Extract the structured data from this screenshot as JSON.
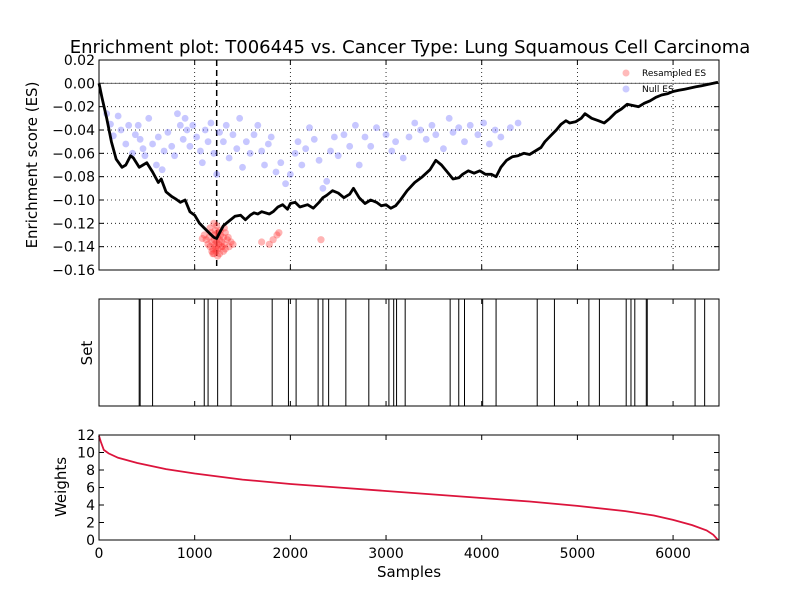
{
  "chart_data": [
    {
      "panel": "enrichment",
      "type": "line",
      "title": "Enrichment plot: T006445 vs. Cancer Type: Lung Squamous Cell Carcinoma",
      "ylabel": "Enrichment score (ES)",
      "xlabel": "",
      "xlim": [
        0,
        6480
      ],
      "ylim": [
        -0.16,
        0.02
      ],
      "yticks": [
        0.02,
        0.0,
        -0.02,
        -0.04,
        -0.06,
        -0.08,
        -0.1,
        -0.12,
        -0.14,
        -0.16
      ],
      "ytick_labels": [
        "0.02",
        "0.00",
        "−0.02",
        "−0.04",
        "−0.06",
        "−0.08",
        "−0.10",
        "−0.12",
        "−0.14",
        "−0.16"
      ],
      "grid": true,
      "legend_position": "top-right",
      "zero_line": 0.0,
      "min_es_position": 1230,
      "series": [
        {
          "name": "ES",
          "color": "#000000",
          "x": [
            0,
            30,
            80,
            130,
            180,
            240,
            280,
            330,
            360,
            420,
            460,
            500,
            560,
            620,
            650,
            700,
            760,
            800,
            850,
            900,
            950,
            1000,
            1050,
            1100,
            1150,
            1200,
            1230,
            1260,
            1300,
            1360,
            1420,
            1480,
            1530,
            1580,
            1620,
            1660,
            1700,
            1780,
            1820,
            1870,
            1920,
            1970,
            2000,
            2050,
            2100,
            2180,
            2240,
            2300,
            2340,
            2380,
            2440,
            2500,
            2560,
            2620,
            2660,
            2720,
            2780,
            2840,
            2900,
            2950,
            3000,
            3050,
            3100,
            3150,
            3220,
            3300,
            3380,
            3460,
            3520,
            3580,
            3640,
            3700,
            3760,
            3800,
            3860,
            3920,
            3980,
            4040,
            4100,
            4150,
            4200,
            4260,
            4320,
            4380,
            4440,
            4500,
            4560,
            4620,
            4660,
            4720,
            4780,
            4830,
            4880,
            4920,
            4980,
            5040,
            5080,
            5150,
            5220,
            5280,
            5340,
            5400,
            5460,
            5520,
            5580,
            5640,
            5700,
            5760,
            5820,
            5880,
            5940,
            6000,
            6060,
            6120,
            6180,
            6240,
            6300,
            6360,
            6420,
            6470
          ],
          "y": [
            0.0,
            -0.012,
            -0.03,
            -0.05,
            -0.065,
            -0.072,
            -0.07,
            -0.062,
            -0.064,
            -0.072,
            -0.07,
            -0.068,
            -0.076,
            -0.085,
            -0.082,
            -0.093,
            -0.097,
            -0.099,
            -0.102,
            -0.1,
            -0.11,
            -0.113,
            -0.12,
            -0.124,
            -0.128,
            -0.132,
            -0.133,
            -0.128,
            -0.122,
            -0.118,
            -0.114,
            -0.113,
            -0.117,
            -0.113,
            -0.111,
            -0.112,
            -0.11,
            -0.112,
            -0.11,
            -0.106,
            -0.104,
            -0.108,
            -0.103,
            -0.102,
            -0.106,
            -0.104,
            -0.107,
            -0.102,
            -0.098,
            -0.096,
            -0.092,
            -0.094,
            -0.098,
            -0.095,
            -0.09,
            -0.098,
            -0.103,
            -0.1,
            -0.102,
            -0.105,
            -0.104,
            -0.107,
            -0.105,
            -0.1,
            -0.092,
            -0.085,
            -0.08,
            -0.074,
            -0.066,
            -0.07,
            -0.076,
            -0.082,
            -0.081,
            -0.078,
            -0.075,
            -0.077,
            -0.075,
            -0.078,
            -0.078,
            -0.08,
            -0.072,
            -0.066,
            -0.063,
            -0.062,
            -0.06,
            -0.061,
            -0.058,
            -0.055,
            -0.05,
            -0.045,
            -0.04,
            -0.035,
            -0.032,
            -0.034,
            -0.033,
            -0.03,
            -0.026,
            -0.03,
            -0.032,
            -0.034,
            -0.03,
            -0.025,
            -0.022,
            -0.018,
            -0.019,
            -0.02,
            -0.017,
            -0.015,
            -0.012,
            -0.01,
            -0.009,
            -0.007,
            -0.006,
            -0.005,
            -0.004,
            -0.003,
            -0.002,
            -0.001,
            0.0,
            0.001
          ]
        },
        {
          "name": "Null ES",
          "type": "scatter",
          "color": "#6b6bff",
          "x": [
            80,
            120,
            150,
            200,
            230,
            280,
            310,
            350,
            380,
            410,
            430,
            460,
            480,
            520,
            560,
            600,
            620,
            660,
            680,
            720,
            760,
            790,
            820,
            850,
            880,
            900,
            920,
            950,
            980,
            1020,
            1060,
            1080,
            1110,
            1140,
            1170,
            1200,
            1230,
            1260,
            1300,
            1330,
            1360,
            1400,
            1440,
            1470,
            1500,
            1540,
            1580,
            1620,
            1660,
            1700,
            1730,
            1770,
            1800,
            1850,
            1900,
            1950,
            2000,
            2050,
            2080,
            2120,
            2160,
            2200,
            2250,
            2300,
            2340,
            2380,
            2420,
            2460,
            2500,
            2560,
            2620,
            2680,
            2720,
            2780,
            2840,
            2900,
            3000,
            3060,
            3100,
            3180,
            3240,
            3300,
            3360,
            3420,
            3480,
            3520,
            3600,
            3660,
            3700,
            3760,
            3820,
            3880,
            3960,
            4020,
            4080,
            4140,
            4200,
            4300,
            4380
          ],
          "y": [
            -0.026,
            -0.035,
            -0.045,
            -0.028,
            -0.04,
            -0.052,
            -0.036,
            -0.06,
            -0.044,
            -0.036,
            -0.048,
            -0.056,
            -0.062,
            -0.03,
            -0.052,
            -0.07,
            -0.046,
            -0.074,
            -0.058,
            -0.042,
            -0.054,
            -0.062,
            -0.026,
            -0.036,
            -0.048,
            -0.03,
            -0.04,
            -0.054,
            -0.036,
            -0.046,
            -0.058,
            -0.068,
            -0.04,
            -0.05,
            -0.034,
            -0.06,
            -0.078,
            -0.042,
            -0.05,
            -0.036,
            -0.064,
            -0.044,
            -0.056,
            -0.03,
            -0.072,
            -0.05,
            -0.06,
            -0.044,
            -0.036,
            -0.058,
            -0.07,
            -0.052,
            -0.046,
            -0.076,
            -0.068,
            -0.086,
            -0.078,
            -0.06,
            -0.05,
            -0.07,
            -0.056,
            -0.038,
            -0.048,
            -0.066,
            -0.09,
            -0.084,
            -0.058,
            -0.046,
            -0.062,
            -0.044,
            -0.054,
            -0.036,
            -0.07,
            -0.046,
            -0.054,
            -0.038,
            -0.044,
            -0.058,
            -0.05,
            -0.064,
            -0.046,
            -0.034,
            -0.04,
            -0.048,
            -0.036,
            -0.044,
            -0.056,
            -0.03,
            -0.042,
            -0.038,
            -0.05,
            -0.036,
            -0.044,
            -0.034,
            -0.052,
            -0.04,
            -0.046,
            -0.038,
            -0.034
          ]
        },
        {
          "name": "Resampled ES",
          "type": "scatter",
          "color": "#ff3a3a",
          "x": [
            1080,
            1100,
            1120,
            1140,
            1150,
            1160,
            1170,
            1180,
            1190,
            1200,
            1205,
            1210,
            1215,
            1220,
            1225,
            1230,
            1235,
            1240,
            1245,
            1250,
            1260,
            1270,
            1280,
            1290,
            1300,
            1310,
            1320,
            1340,
            1360,
            1380,
            1400,
            1180,
            1200,
            1220,
            1240,
            1260,
            1280,
            1300,
            1320,
            1160,
            1200,
            1230,
            1270,
            1310,
            1350,
            1700,
            1780,
            1820,
            1860,
            1880,
            2320,
            1190,
            1250
          ],
          "y": [
            -0.133,
            -0.13,
            -0.134,
            -0.138,
            -0.132,
            -0.14,
            -0.128,
            -0.136,
            -0.142,
            -0.13,
            -0.134,
            -0.138,
            -0.126,
            -0.14,
            -0.144,
            -0.136,
            -0.132,
            -0.128,
            -0.142,
            -0.138,
            -0.134,
            -0.13,
            -0.136,
            -0.14,
            -0.132,
            -0.138,
            -0.128,
            -0.134,
            -0.14,
            -0.136,
            -0.138,
            -0.144,
            -0.146,
            -0.142,
            -0.148,
            -0.146,
            -0.14,
            -0.144,
            -0.142,
            -0.124,
            -0.12,
            -0.122,
            -0.126,
            -0.124,
            -0.132,
            -0.136,
            -0.138,
            -0.134,
            -0.13,
            -0.128,
            -0.134,
            -0.146,
            -0.128
          ]
        }
      ]
    },
    {
      "panel": "set",
      "type": "rug",
      "ylabel": "Set",
      "xlim": [
        0,
        6480
      ],
      "positions": [
        420,
        430,
        560,
        1100,
        1140,
        1240,
        1380,
        1810,
        1980,
        2060,
        2290,
        2340,
        2400,
        2580,
        2820,
        3030,
        3080,
        3110,
        3200,
        3670,
        3760,
        3820,
        4010,
        4150,
        4580,
        4760,
        5120,
        5230,
        5510,
        5560,
        5600,
        5720,
        5730,
        6230,
        6330
      ]
    },
    {
      "panel": "weights",
      "type": "line",
      "xlabel": "Samples",
      "ylabel": "Weights",
      "xlim": [
        0,
        6480
      ],
      "ylim": [
        0,
        12
      ],
      "xticks": [
        0,
        1000,
        2000,
        3000,
        4000,
        5000,
        6000
      ],
      "yticks": [
        0,
        2,
        4,
        6,
        8,
        10,
        12
      ],
      "series": [
        {
          "name": "weights",
          "color": "#dc143c",
          "x": [
            0,
            20,
            50,
            100,
            200,
            400,
            700,
            1000,
            1500,
            2000,
            2500,
            3000,
            3500,
            4000,
            4500,
            5000,
            5500,
            5800,
            6000,
            6200,
            6350,
            6420,
            6470
          ],
          "y": [
            11.9,
            11.2,
            10.3,
            9.9,
            9.4,
            8.8,
            8.1,
            7.6,
            6.9,
            6.4,
            6.0,
            5.6,
            5.2,
            4.8,
            4.4,
            3.9,
            3.3,
            2.8,
            2.3,
            1.7,
            1.1,
            0.6,
            0.0
          ]
        }
      ]
    }
  ]
}
